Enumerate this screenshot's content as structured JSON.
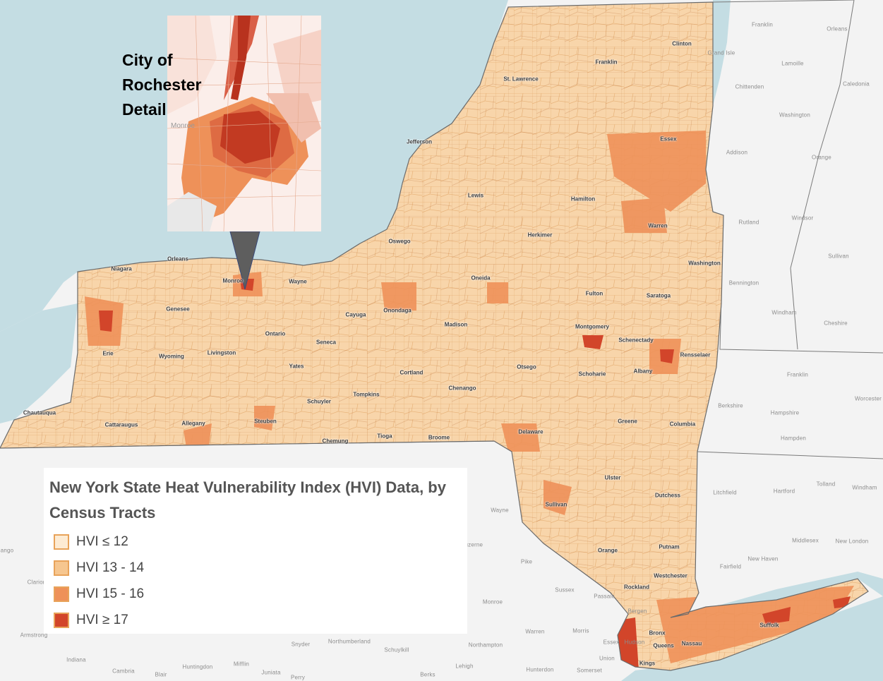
{
  "inset": {
    "title_lines": [
      "City of",
      "Rochester",
      "Detail"
    ],
    "place_label": "Monroe"
  },
  "legend": {
    "title": "New York State Heat Vulnerability Index (HVI) Data, by Census Tracts",
    "items": [
      {
        "label": "HVI ≤ 12",
        "color": "#fdebd3"
      },
      {
        "label": "HVI 13 - 14",
        "color": "#f6c68f"
      },
      {
        "label": "HVI 15 - 16",
        "color": "#ee9159"
      },
      {
        "label": "HVI ≥ 17",
        "color": "#d2452a"
      }
    ]
  },
  "counties": [
    "Niagara",
    "Orleans",
    "Monroe",
    "Wayne",
    "Genesee",
    "Erie",
    "Wyoming",
    "Livingston",
    "Ontario",
    "Yates",
    "Seneca",
    "Cayuga",
    "Onondaga",
    "Oswego",
    "Madison",
    "Oneida",
    "Jefferson",
    "Lewis",
    "St. Lawrence",
    "Franklin",
    "Clinton",
    "Essex",
    "Hamilton",
    "Herkimer",
    "Fulton",
    "Warren",
    "Washington",
    "Saratoga",
    "Montgomery",
    "Schenectady",
    "Rensselaer",
    "Albany",
    "Schoharie",
    "Otsego",
    "Chenango",
    "Cortland",
    "Tompkins",
    "Schuyler",
    "Steuben",
    "Chemung",
    "Tioga",
    "Broome",
    "Allegany",
    "Cattaraugus",
    "Chautauqua",
    "Delaware",
    "Greene",
    "Columbia",
    "Ulster",
    "Dutchess",
    "Sullivan",
    "Orange",
    "Putnam",
    "Westchester",
    "Rockland",
    "Bronx",
    "Queens",
    "Kings",
    "Nassau",
    "Suffolk"
  ],
  "outside_labels": [
    "Franklin",
    "Orleans",
    "Lamoille",
    "Caledonia",
    "Grand Isle",
    "Chittenden",
    "Washington",
    "Addison",
    "Orange",
    "Rutland",
    "Windsor",
    "Sullivan",
    "Bennington",
    "Windham",
    "Cheshire",
    "Franklin",
    "Worcester",
    "Berkshire",
    "Hampshire",
    "Hampden",
    "Litchfield",
    "Hartford",
    "Tolland",
    "Windham",
    "Middlesex",
    "New London",
    "Fairfield",
    "New Haven",
    "Wayne",
    "Pike",
    "Sussex",
    "Passaic",
    "Bergen",
    "Hudson",
    "Essex",
    "Union",
    "Monroe",
    "Warren",
    "Morris",
    "Northampton",
    "Lehigh",
    "Hunterdon",
    "Somerset",
    "Snyder",
    "Northumberland",
    "Schuylkill",
    "Juniata",
    "Mifflin",
    "Huntingdon",
    "Cambria",
    "Blair",
    "Indiana",
    "Armstrong",
    "Perry",
    "Berks",
    "Clarion",
    "Luzerne",
    "ango"
  ],
  "colors": {
    "water": "#c3dde4",
    "land": "#f4f4f4",
    "tract_border": "#d8a066"
  }
}
